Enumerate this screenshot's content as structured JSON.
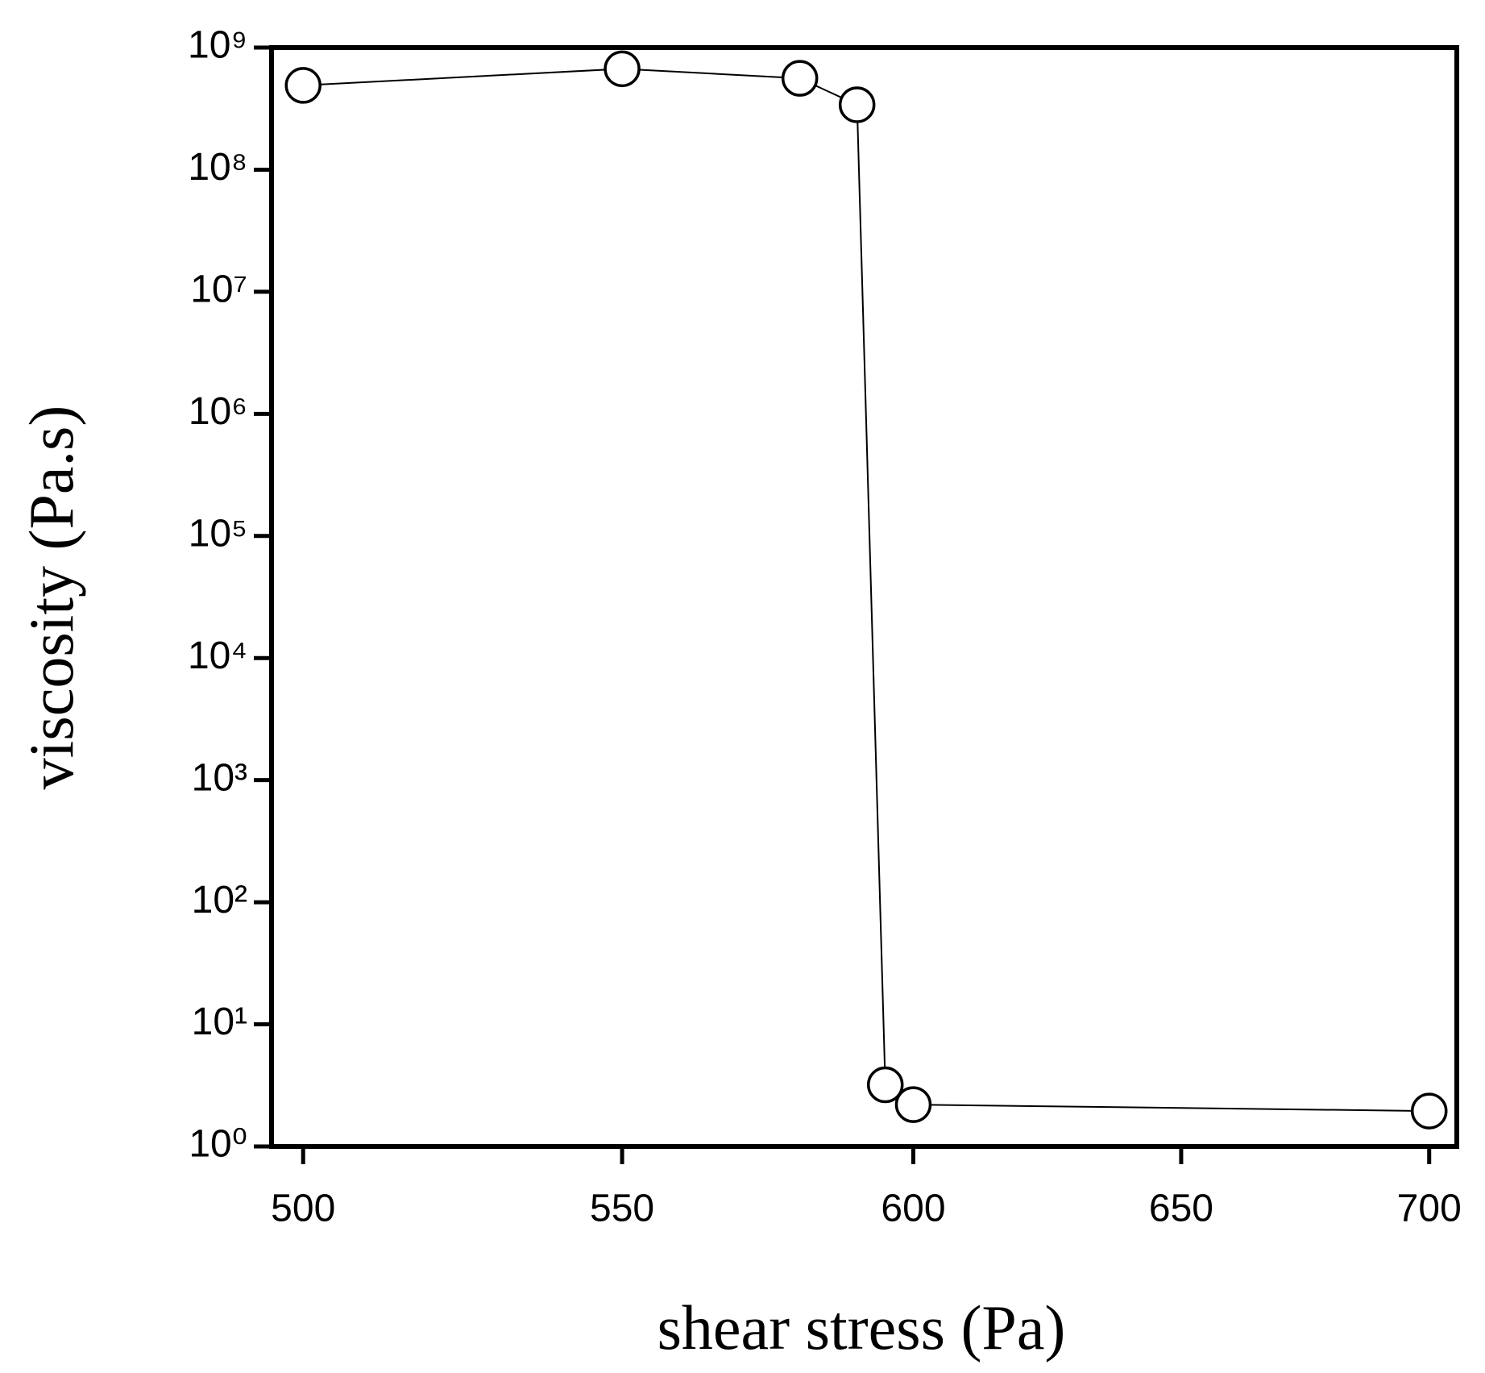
{
  "chart_data": {
    "type": "line",
    "x_label": "shear stress (Pa)",
    "y_label": "viscosity (Pa.s)",
    "x": [
      500,
      550,
      580,
      590,
      595,
      600,
      700
    ],
    "series": [
      {
        "values": [
          490000000,
          670000000,
          560000000,
          340000000,
          3.2,
          2.2,
          1.95
        ],
        "color": "#000000"
      }
    ],
    "xscale": "log",
    "yscale": "log",
    "xlim": [
      495.3,
      705.8
    ],
    "ylim": [
      1,
      1000000000
    ],
    "xticks": [
      500,
      550,
      600,
      650,
      700
    ],
    "yticks": [
      {
        "value": 1,
        "label": "10⁰"
      },
      {
        "value": 10,
        "label": "10¹"
      },
      {
        "value": 100,
        "label": "10²"
      },
      {
        "value": 1000,
        "label": "10³"
      },
      {
        "value": 10000,
        "label": "10⁴"
      },
      {
        "value": 100000,
        "label": "10⁵"
      },
      {
        "value": 1000000,
        "label": "10⁶"
      },
      {
        "value": 10000000,
        "label": "10⁷"
      },
      {
        "value": 100000000,
        "label": "10⁸"
      },
      {
        "value": 1000000000,
        "label": "10⁹"
      }
    ]
  }
}
